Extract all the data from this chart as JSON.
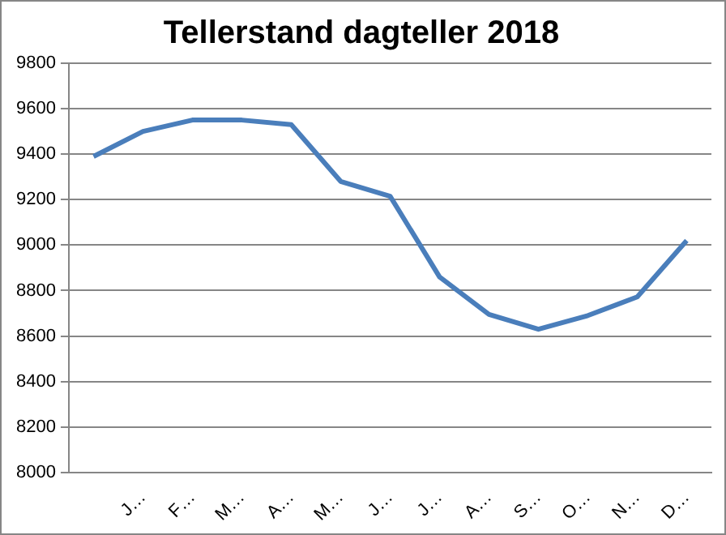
{
  "chart_data": {
    "type": "line",
    "title": "Tellerstand dagteller 2018",
    "categories": [
      null,
      "J…",
      "F…",
      "M…",
      "A…",
      "M…",
      "J…",
      "J…",
      "A…",
      "S…",
      "O…",
      "N…",
      "D…"
    ],
    "series": [
      {
        "color": "#4a7ebb",
        "values": [
          9390,
          9500,
          9550,
          9550,
          9530,
          9280,
          9215,
          8860,
          8695,
          8630,
          8690,
          8772,
          9020
        ]
      }
    ],
    "ylim": [
      8000,
      9800
    ],
    "yticks": [
      8000,
      8200,
      8400,
      8600,
      8800,
      9000,
      9200,
      9400,
      9600,
      9800
    ],
    "grid": "y",
    "legend": false,
    "marker": "none",
    "line_style": "solid"
  }
}
